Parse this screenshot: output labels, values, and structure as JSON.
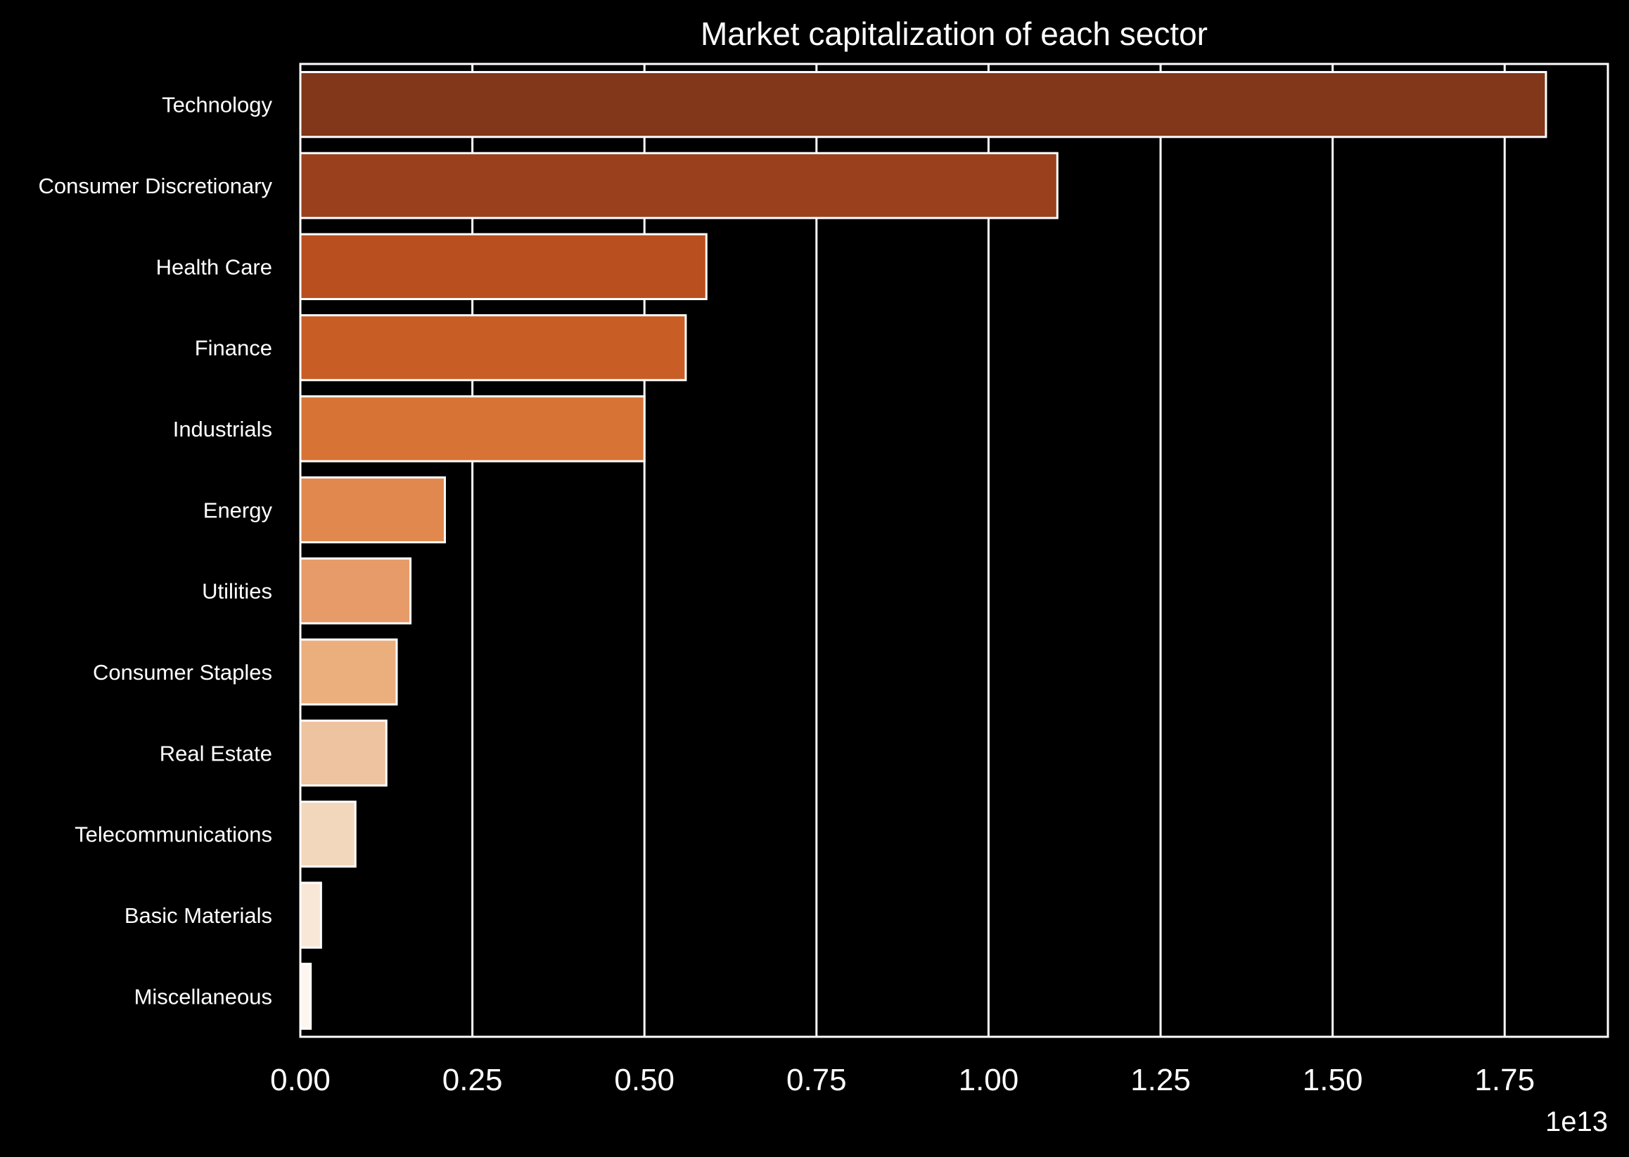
{
  "chart_data": {
    "type": "bar",
    "orientation": "horizontal",
    "title": "Market capitalization of each sector",
    "xlabel": "",
    "ylabel": "",
    "x_offset_label": "1e13",
    "xlim": [
      0,
      1.9
    ],
    "xticks": [
      "0.00",
      "0.25",
      "0.50",
      "0.75",
      "1.00",
      "1.25",
      "1.50",
      "1.75"
    ],
    "grid": "vertical",
    "categories": [
      "Technology",
      "Consumer Discretionary",
      "Health Care",
      "Finance",
      "Industrials",
      "Energy",
      "Utilities",
      "Consumer Staples",
      "Real Estate",
      "Telecommunications",
      "Basic Materials",
      "Miscellaneous"
    ],
    "values": [
      1.81,
      1.1,
      0.59,
      0.56,
      0.5,
      0.21,
      0.16,
      0.14,
      0.125,
      0.08,
      0.03,
      0.015
    ],
    "colors": [
      "#82361a",
      "#9a401c",
      "#b94e1e",
      "#c95d26",
      "#d77335",
      "#e1884e",
      "#e79b68",
      "#ebae7d",
      "#eec39f",
      "#f3d7bc",
      "#f8e7d7",
      "#fdf6f0"
    ],
    "background": "#000000",
    "foreground": "#ffffff"
  }
}
